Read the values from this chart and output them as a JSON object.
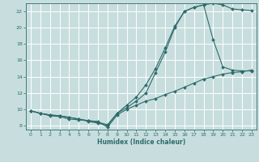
{
  "bg_color": "#c8dede",
  "grid_color": "#ffffff",
  "line_color": "#2e6b6b",
  "marker_color": "#2e6b6b",
  "xlabel": "Humidex (Indice chaleur)",
  "xlim": [
    -0.5,
    23.5
  ],
  "ylim": [
    7.5,
    23.0
  ],
  "yticks": [
    8,
    10,
    12,
    14,
    16,
    18,
    20,
    22
  ],
  "xticks": [
    0,
    1,
    2,
    3,
    4,
    5,
    6,
    7,
    8,
    9,
    10,
    11,
    12,
    13,
    14,
    15,
    16,
    17,
    18,
    19,
    20,
    21,
    22,
    23
  ],
  "line1_x": [
    0,
    1,
    2,
    3,
    4,
    5,
    6,
    7,
    8,
    9,
    10,
    11,
    12,
    13,
    14,
    15,
    16,
    17,
    18,
    19,
    20,
    21,
    22,
    23
  ],
  "line1_y": [
    9.8,
    9.5,
    9.2,
    9.1,
    8.8,
    8.7,
    8.6,
    8.5,
    7.8,
    9.3,
    10.0,
    10.5,
    11.0,
    11.3,
    11.8,
    12.2,
    12.7,
    13.2,
    13.7,
    14.0,
    14.3,
    14.5,
    14.6,
    14.8
  ],
  "line2_x": [
    0,
    1,
    2,
    3,
    4,
    5,
    6,
    7,
    8,
    9,
    10,
    11,
    12,
    13,
    14,
    15,
    16,
    17,
    18,
    19,
    20,
    21,
    22,
    23
  ],
  "line2_y": [
    9.8,
    9.5,
    9.3,
    9.2,
    9.0,
    8.8,
    8.6,
    8.4,
    8.1,
    9.5,
    10.5,
    11.5,
    13.0,
    15.0,
    17.5,
    20.2,
    22.0,
    22.5,
    22.8,
    23.0,
    22.8,
    22.3,
    22.2,
    22.1
  ],
  "line3_x": [
    0,
    1,
    2,
    3,
    4,
    5,
    6,
    7,
    8,
    9,
    10,
    11,
    12,
    13,
    14,
    15,
    16,
    17,
    18,
    19,
    20,
    21,
    22,
    23
  ],
  "line3_y": [
    9.8,
    9.5,
    9.3,
    9.2,
    9.0,
    8.8,
    8.5,
    8.3,
    8.0,
    9.5,
    10.2,
    11.0,
    12.0,
    14.5,
    17.0,
    20.0,
    22.0,
    22.5,
    22.8,
    18.5,
    15.2,
    14.8,
    14.7,
    14.7
  ]
}
